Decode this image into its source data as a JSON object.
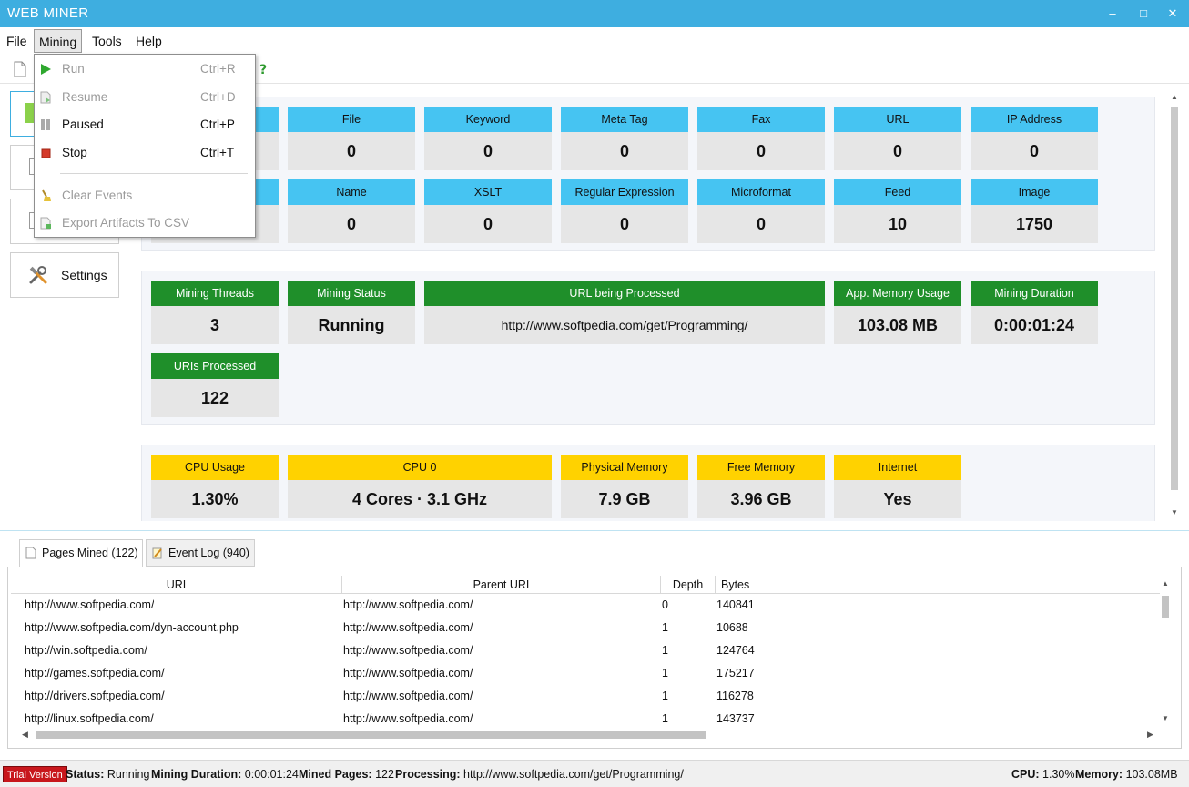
{
  "window": {
    "title": "WEB MINER"
  },
  "menu": {
    "file": "File",
    "mining": "Mining",
    "tools": "Tools",
    "help": "Help"
  },
  "mining_menu": {
    "items": [
      {
        "label": "Run",
        "shortcut": "Ctrl+R",
        "icon": "play-icon",
        "disabled": true
      },
      {
        "label": "Resume",
        "shortcut": "Ctrl+D",
        "icon": "resume-icon",
        "disabled": true
      },
      {
        "label": "Paused",
        "shortcut": "Ctrl+P",
        "icon": "pause-icon",
        "disabled": false
      },
      {
        "label": "Stop",
        "shortcut": "Ctrl+T",
        "icon": "stop-icon",
        "disabled": false
      },
      {
        "label": "Clear Events",
        "icon": "broom-icon",
        "disabled": true
      },
      {
        "label": "Export Artifacts To CSV",
        "icon": "csv-export-icon",
        "disabled": true
      }
    ]
  },
  "sidebar": {
    "settings": "Settings"
  },
  "artifacts": {
    "row1": [
      {
        "label": "File",
        "value": "0"
      },
      {
        "label": "Keyword",
        "value": "0"
      },
      {
        "label": "Meta Tag",
        "value": "0"
      },
      {
        "label": "Fax",
        "value": "0"
      },
      {
        "label": "URL",
        "value": "0"
      },
      {
        "label": "IP Address",
        "value": "0"
      }
    ],
    "row2": [
      {
        "label": "Name",
        "value": "0"
      },
      {
        "label": "XSLT",
        "value": "0"
      },
      {
        "label": "Regular Expression",
        "value": "0"
      },
      {
        "label": "Microformat",
        "value": "0"
      },
      {
        "label": "Feed",
        "value": "10"
      },
      {
        "label": "Image",
        "value": "1750"
      }
    ]
  },
  "mining": {
    "threads": {
      "label": "Mining Threads",
      "value": "3"
    },
    "status": {
      "label": "Mining Status",
      "value": "Running"
    },
    "url": {
      "label": "URL being Processed",
      "value": "http://www.softpedia.com/get/Programming/"
    },
    "memory": {
      "label": "App. Memory Usage",
      "value": "103.08 MB"
    },
    "duration": {
      "label": "Mining Duration",
      "value": "0:00:01:24"
    },
    "uris": {
      "label": "URIs Processed",
      "value": "122"
    }
  },
  "system": {
    "cpu_usage": {
      "label": "CPU Usage",
      "value": "1.30%"
    },
    "cpu0": {
      "label": "CPU 0",
      "value": "4 Cores · 3.1 GHz"
    },
    "physical": {
      "label": "Physical Memory",
      "value": "7.9 GB"
    },
    "free": {
      "label": "Free Memory",
      "value": "3.96 GB"
    },
    "internet": {
      "label": "Internet",
      "value": "Yes"
    }
  },
  "tabs": {
    "pages": "Pages Mined (122)",
    "events": "Event Log (940)"
  },
  "grid": {
    "columns": [
      "URI",
      "Parent URI",
      "Depth",
      "Bytes"
    ],
    "rows": [
      [
        "http://www.softpedia.com/",
        "http://www.softpedia.com/",
        "0",
        "140841"
      ],
      [
        "http://www.softpedia.com/dyn-account.php",
        "http://www.softpedia.com/",
        "1",
        "10688"
      ],
      [
        "http://win.softpedia.com/",
        "http://www.softpedia.com/",
        "1",
        "124764"
      ],
      [
        "http://games.softpedia.com/",
        "http://www.softpedia.com/",
        "1",
        "175217"
      ],
      [
        "http://drivers.softpedia.com/",
        "http://www.softpedia.com/",
        "1",
        "116278"
      ],
      [
        "http://linux.softpedia.com/",
        "http://www.softpedia.com/",
        "1",
        "143737"
      ]
    ]
  },
  "statusbar": {
    "trial": "Trial Version",
    "status_label": "Status:",
    "status_value": "Running",
    "duration_label": "Mining Duration:",
    "duration_value": "0:00:01:24",
    "mined_label": "Mined Pages:",
    "mined_value": "122",
    "processing_label": "Processing:",
    "processing_value": "http://www.softpedia.com/get/Programming/",
    "cpu_label": "CPU:",
    "cpu_value": "1.30%",
    "memory_label": "Memory:",
    "memory_value": "103.08MB"
  },
  "colors": {
    "accent": "#3eaee0",
    "artifact_header": "#46c4f2",
    "mining_header": "#1f8f2a",
    "system_header": "#ffd200",
    "trial": "#c8171c"
  }
}
